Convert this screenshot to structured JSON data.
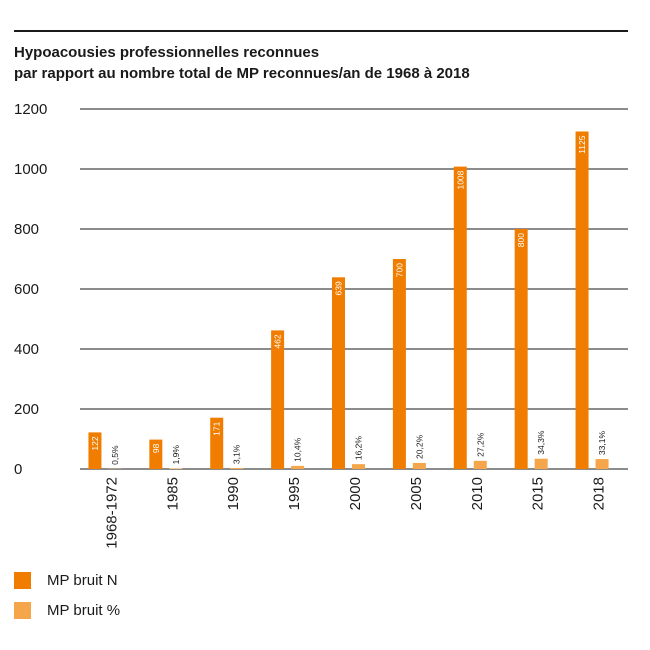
{
  "chart_data": {
    "type": "bar",
    "title_line1": "Hypoacousies professionnelles reconnues",
    "title_line2": "par rapport au nombre total de MP reconnues/an de 1968 à 2018",
    "xlabel": "",
    "ylabel": "",
    "ylim": [
      0,
      1200
    ],
    "yticks": [
      "0",
      "200",
      "400",
      "600",
      "800",
      "1000",
      "1200"
    ],
    "ytick_values": [
      0,
      200,
      400,
      600,
      800,
      1000,
      1200
    ],
    "grid": true,
    "legend_position": "bottom-left",
    "categories": [
      "1968-1972",
      "1985",
      "1990",
      "1995",
      "2000",
      "2005",
      "2010",
      "2015",
      "2018"
    ],
    "series": [
      {
        "name": "MP bruit N",
        "color": "#f07d00",
        "values": [
          122,
          98,
          171,
          462,
          639,
          700,
          1008,
          800,
          1125
        ],
        "labels": [
          "122",
          "98",
          "171",
          "462",
          "639",
          "700",
          "1008",
          "800",
          "1125"
        ]
      },
      {
        "name": "MP bruit %",
        "color": "#f5a54a",
        "values": [
          0.5,
          1.9,
          3.1,
          10.4,
          16.2,
          20.2,
          27.2,
          34.3,
          33.1
        ],
        "labels": [
          "0,5%",
          "1,9%",
          "3,1%",
          "10,4%",
          "16,2%",
          "20,2%",
          "27,2%",
          "34,3%",
          "33,1%"
        ]
      }
    ]
  }
}
